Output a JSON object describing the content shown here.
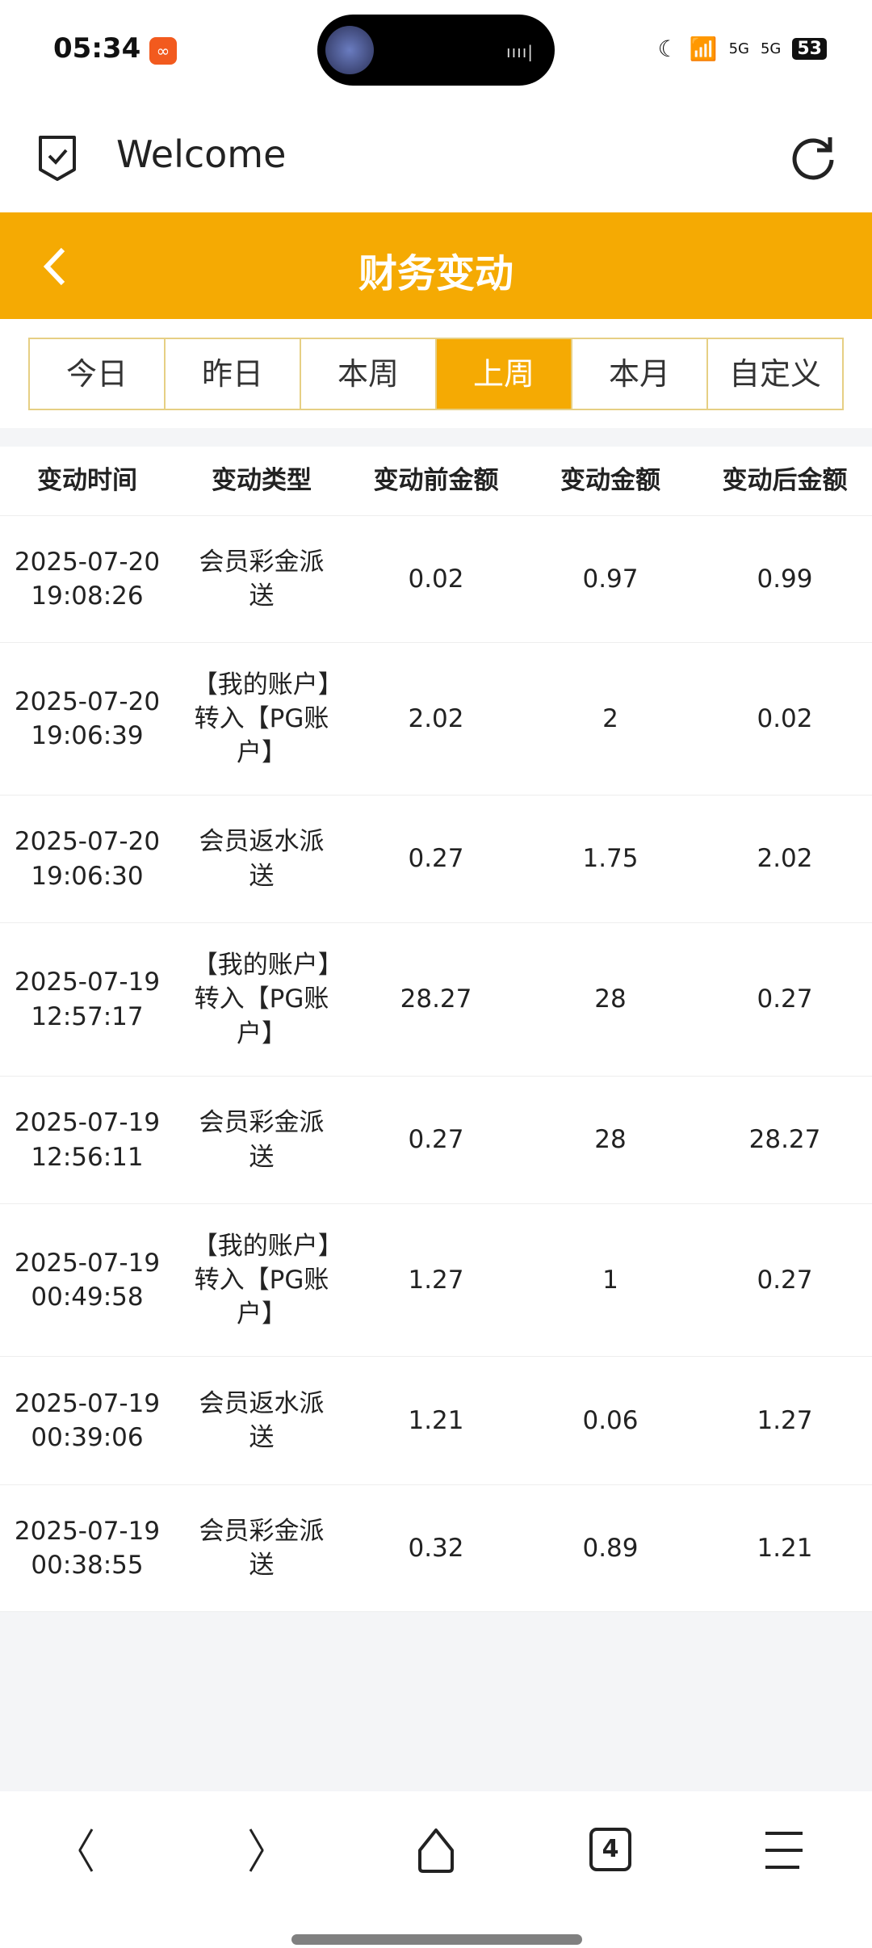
{
  "status_bar": {
    "time": "05:34",
    "battery": "53",
    "network": "5G"
  },
  "top_bar": {
    "title": "Welcome"
  },
  "header": {
    "title": "财务变动"
  },
  "tabs": [
    {
      "label": "今日",
      "active": false
    },
    {
      "label": "昨日",
      "active": false
    },
    {
      "label": "本周",
      "active": false
    },
    {
      "label": "上周",
      "active": true
    },
    {
      "label": "本月",
      "active": false
    },
    {
      "label": "自定义",
      "active": false
    }
  ],
  "table": {
    "columns": [
      "变动时间",
      "变动类型",
      "变动前金额",
      "变动金额",
      "变动后金额"
    ],
    "rows": [
      {
        "date": "2025-07-20",
        "time": "19:08:26",
        "type": "会员彩金派送",
        "before": "0.02",
        "amount": "0.97",
        "after": "0.99"
      },
      {
        "date": "2025-07-20",
        "time": "19:06:39",
        "type": "【我的账户】转入【PG账户】",
        "before": "2.02",
        "amount": "2",
        "after": "0.02"
      },
      {
        "date": "2025-07-20",
        "time": "19:06:30",
        "type": "会员返水派送",
        "before": "0.27",
        "amount": "1.75",
        "after": "2.02"
      },
      {
        "date": "2025-07-19",
        "time": "12:57:17",
        "type": "【我的账户】转入【PG账户】",
        "before": "28.27",
        "amount": "28",
        "after": "0.27"
      },
      {
        "date": "2025-07-19",
        "time": "12:56:11",
        "type": "会员彩金派送",
        "before": "0.27",
        "amount": "28",
        "after": "28.27"
      },
      {
        "date": "2025-07-19",
        "time": "00:49:58",
        "type": "【我的账户】转入【PG账户】",
        "before": "1.27",
        "amount": "1",
        "after": "0.27"
      },
      {
        "date": "2025-07-19",
        "time": "00:39:06",
        "type": "会员返水派送",
        "before": "1.21",
        "amount": "0.06",
        "after": "1.27"
      },
      {
        "date": "2025-07-19",
        "time": "00:38:55",
        "type": "会员彩金派送",
        "before": "0.32",
        "amount": "0.89",
        "after": "1.21"
      }
    ]
  },
  "bottom_nav": {
    "tab_count": "4"
  },
  "colors": {
    "accent": "#f5aa03",
    "tab_border": "#e6cf84",
    "background": "#f4f5f7"
  }
}
